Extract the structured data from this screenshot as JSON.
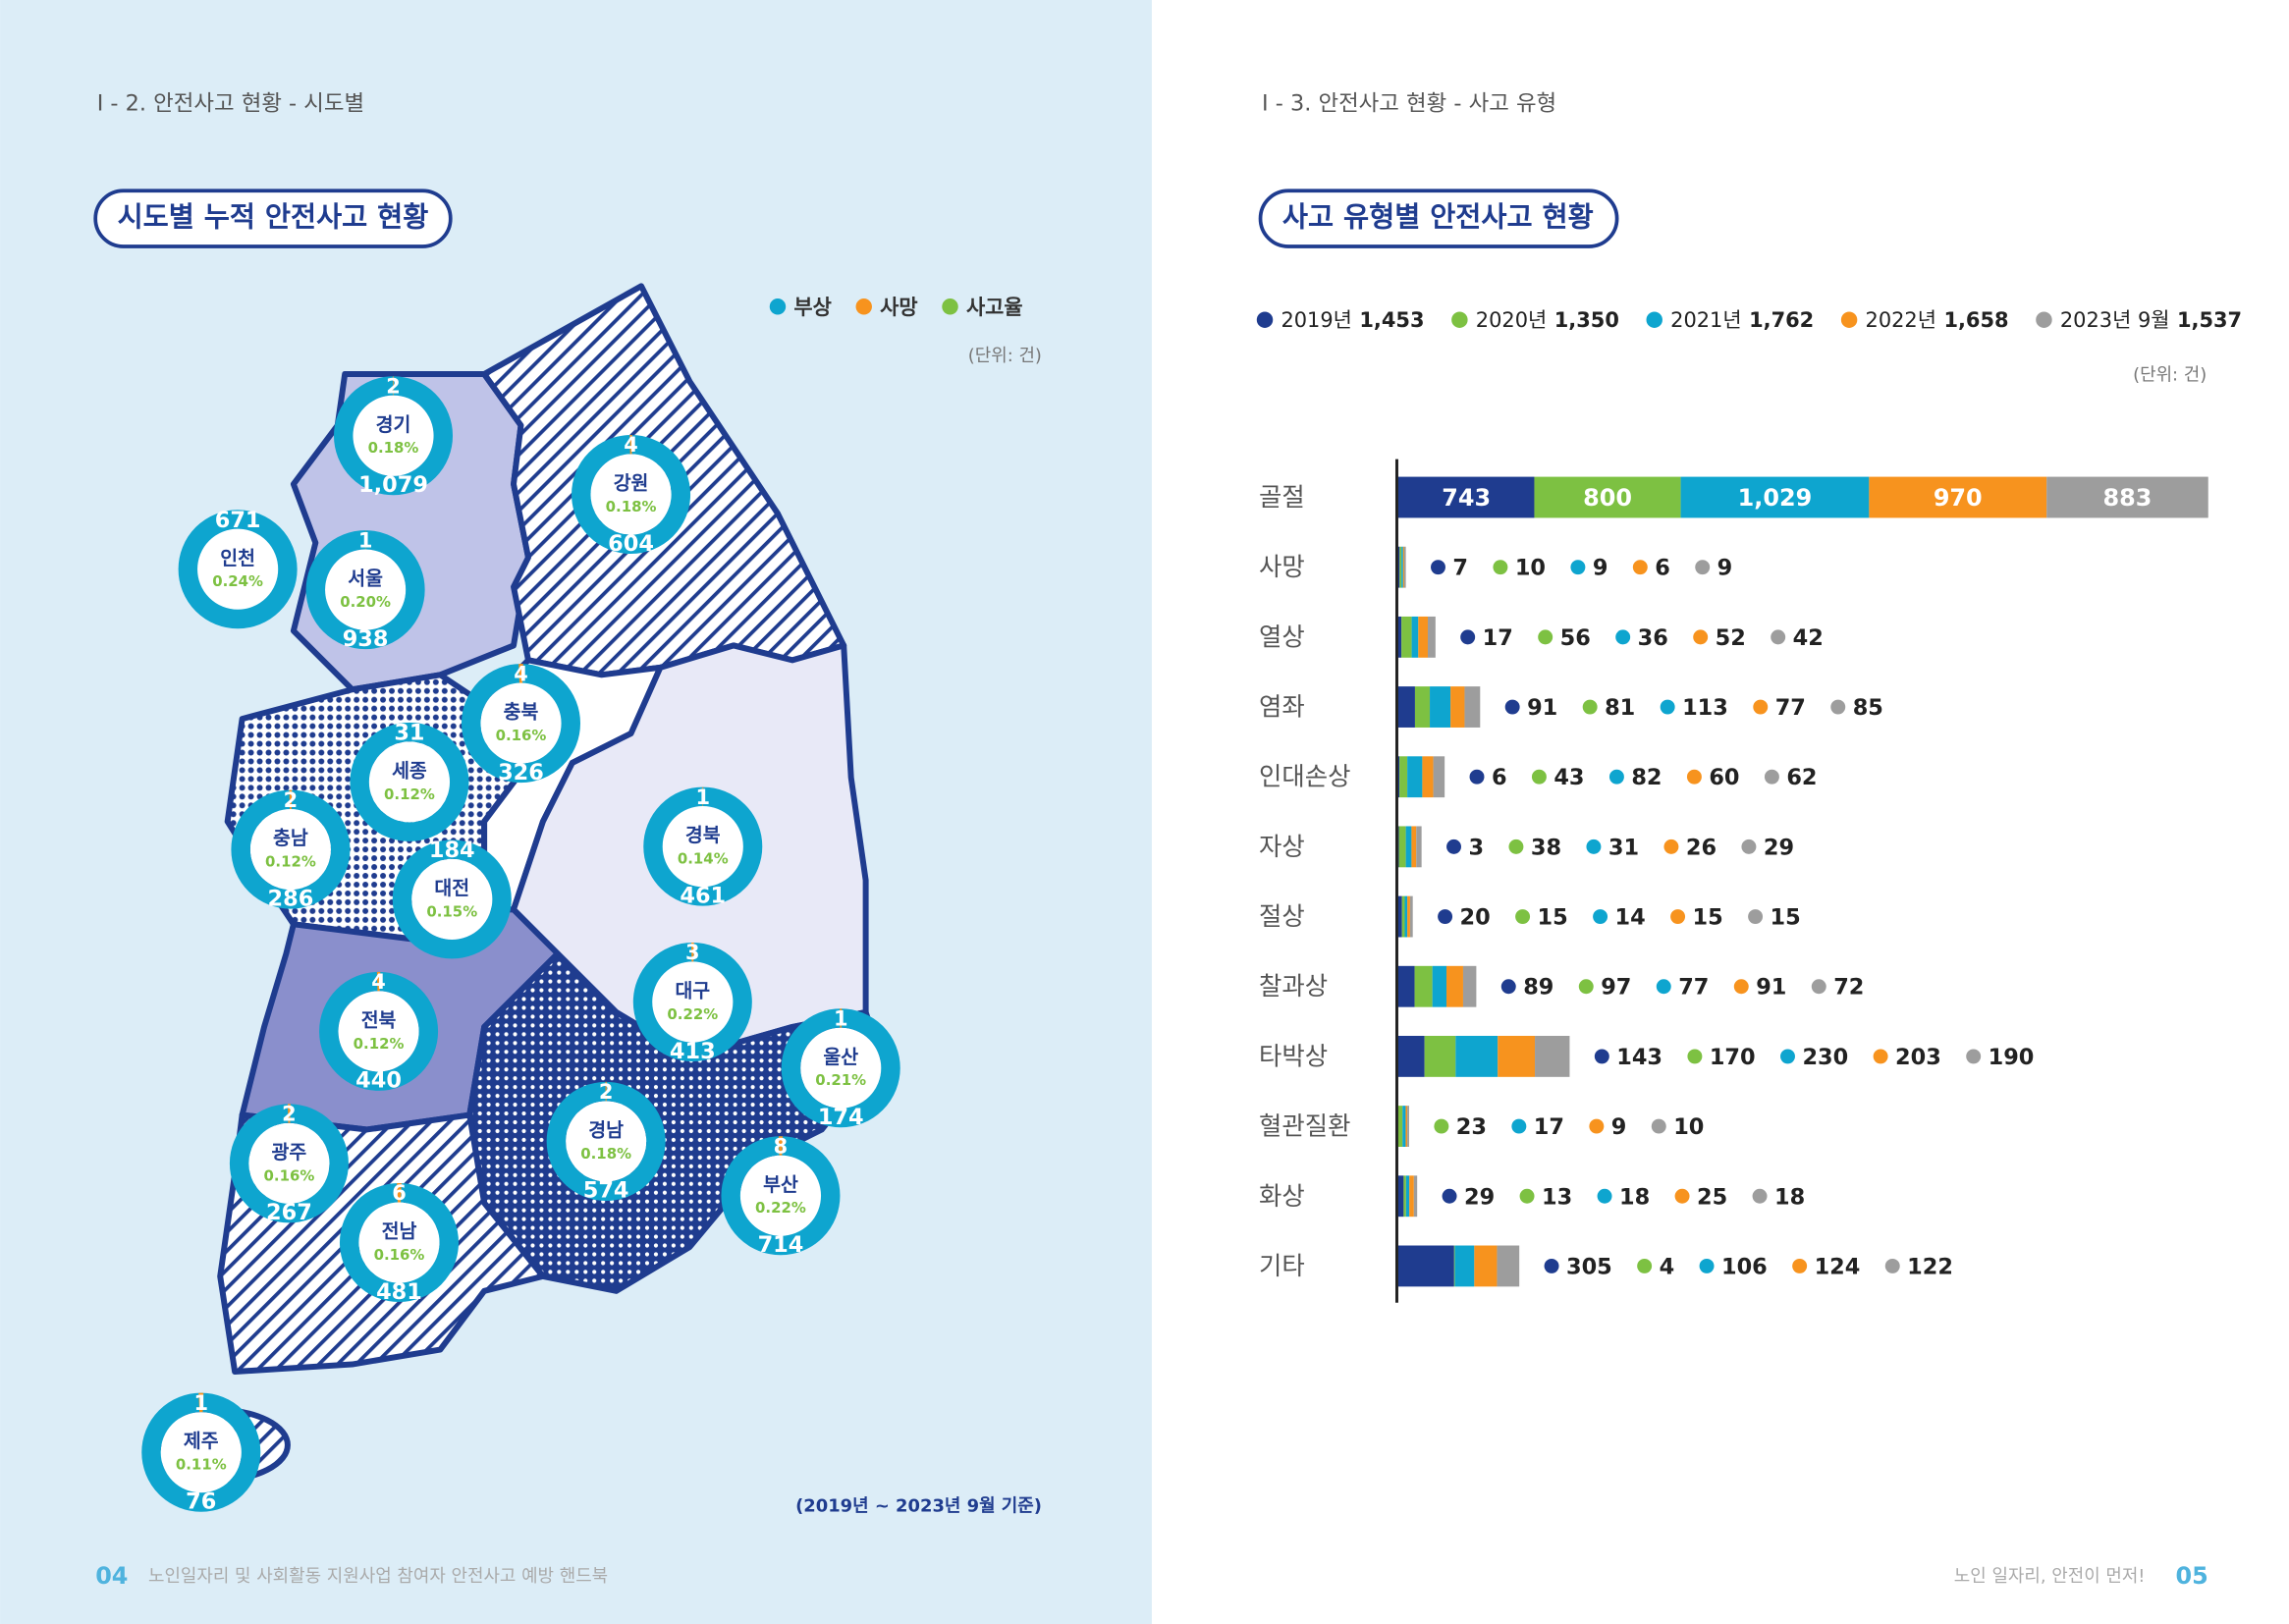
{
  "left_page": {
    "breadcrumb": "Ⅰ - 2. 안전사고 현황 - 시도별",
    "title": "시도별 누적 안전사고 현황",
    "unit": "(단위: 건)",
    "note": "(2019년 ~ 2023년 9월 기준)",
    "page_number": "04",
    "footer": "노인일자리 및 사회활동 지원사업 참여자 안전사고 예방 핸드북"
  },
  "right_page": {
    "breadcrumb": "Ⅰ - 3. 안전사고 현황 - 사고 유형",
    "title": "사고 유형별 안전사고 현황",
    "unit": "(단위: 건)",
    "page_number": "05",
    "footer": "노인 일자리, 안전이 먼저!"
  },
  "chart_data": [
    {
      "type": "donut-map",
      "categories": [
        "경기",
        "서울",
        "인천",
        "강원",
        "충북",
        "세종",
        "충남",
        "대전",
        "경북",
        "대구",
        "전북",
        "울산",
        "경남",
        "광주",
        "부산",
        "전남",
        "제주"
      ],
      "series": [
        {
          "name": "부상",
          "color": "#0ea5cf",
          "values": [
            1079,
            938,
            671,
            604,
            326,
            31,
            286,
            184,
            461,
            413,
            440,
            174,
            574,
            267,
            714,
            481,
            76
          ],
          "value_labels": [
            "1,079",
            "938",
            "671",
            "604",
            "326",
            "31",
            "286",
            "184",
            "461",
            "413",
            "440",
            "174",
            "574",
            "267",
            "714",
            "481",
            "76"
          ]
        },
        {
          "name": "사망",
          "color": "#f7931e",
          "values": [
            2,
            1,
            null,
            4,
            4,
            null,
            2,
            null,
            1,
            3,
            4,
            1,
            2,
            2,
            8,
            6,
            1
          ]
        },
        {
          "name": "사고율",
          "color": "#7dc142",
          "values": [
            0.18,
            0.2,
            0.24,
            0.18,
            0.16,
            0.12,
            0.12,
            0.15,
            0.14,
            0.22,
            0.12,
            0.21,
            0.18,
            0.16,
            0.22,
            0.16,
            0.11
          ],
          "value_labels": [
            "0.18%",
            "0.20%",
            "0.24%",
            "0.18%",
            "0.16%",
            "0.12%",
            "0.12%",
            "0.15%",
            "0.14%",
            "0.22%",
            "0.12%",
            "0.21%",
            "0.18%",
            "0.16%",
            "0.22%",
            "0.16%",
            "0.11%"
          ]
        }
      ]
    },
    {
      "type": "stacked-hbar",
      "categories": [
        "골절",
        "사망",
        "열상",
        "염좌",
        "인대손상",
        "자상",
        "절상",
        "찰과상",
        "타박상",
        "혈관질환",
        "화상",
        "기타"
      ],
      "series": [
        {
          "name": "2019년",
          "total": 1453,
          "total_label": "1,453",
          "color": "#1f3c8f",
          "values": [
            743,
            7,
            17,
            91,
            6,
            3,
            20,
            89,
            143,
            null,
            29,
            305
          ]
        },
        {
          "name": "2020년",
          "total": 1350,
          "total_label": "1,350",
          "color": "#7dc142",
          "values": [
            800,
            10,
            56,
            81,
            43,
            38,
            15,
            97,
            170,
            23,
            13,
            4
          ]
        },
        {
          "name": "2021년",
          "total": 1762,
          "total_label": "1,762",
          "color": "#0ea5cf",
          "values": [
            1029,
            9,
            36,
            113,
            82,
            31,
            14,
            77,
            230,
            17,
            18,
            106
          ],
          "value_labels": [
            "1,029",
            "9",
            "36",
            "113",
            "82",
            "31",
            "14",
            "77",
            "230",
            "17",
            "18",
            "106"
          ]
        },
        {
          "name": "2022년",
          "total": 1658,
          "total_label": "1,658",
          "color": "#f7931e",
          "values": [
            970,
            6,
            52,
            77,
            60,
            26,
            15,
            91,
            203,
            9,
            25,
            124
          ]
        },
        {
          "name": "2023년 9월",
          "total": 1537,
          "total_label": "1,537",
          "color": "#9d9d9d",
          "values": [
            883,
            9,
            42,
            85,
            62,
            29,
            15,
            72,
            190,
            10,
            18,
            122
          ]
        }
      ]
    }
  ]
}
